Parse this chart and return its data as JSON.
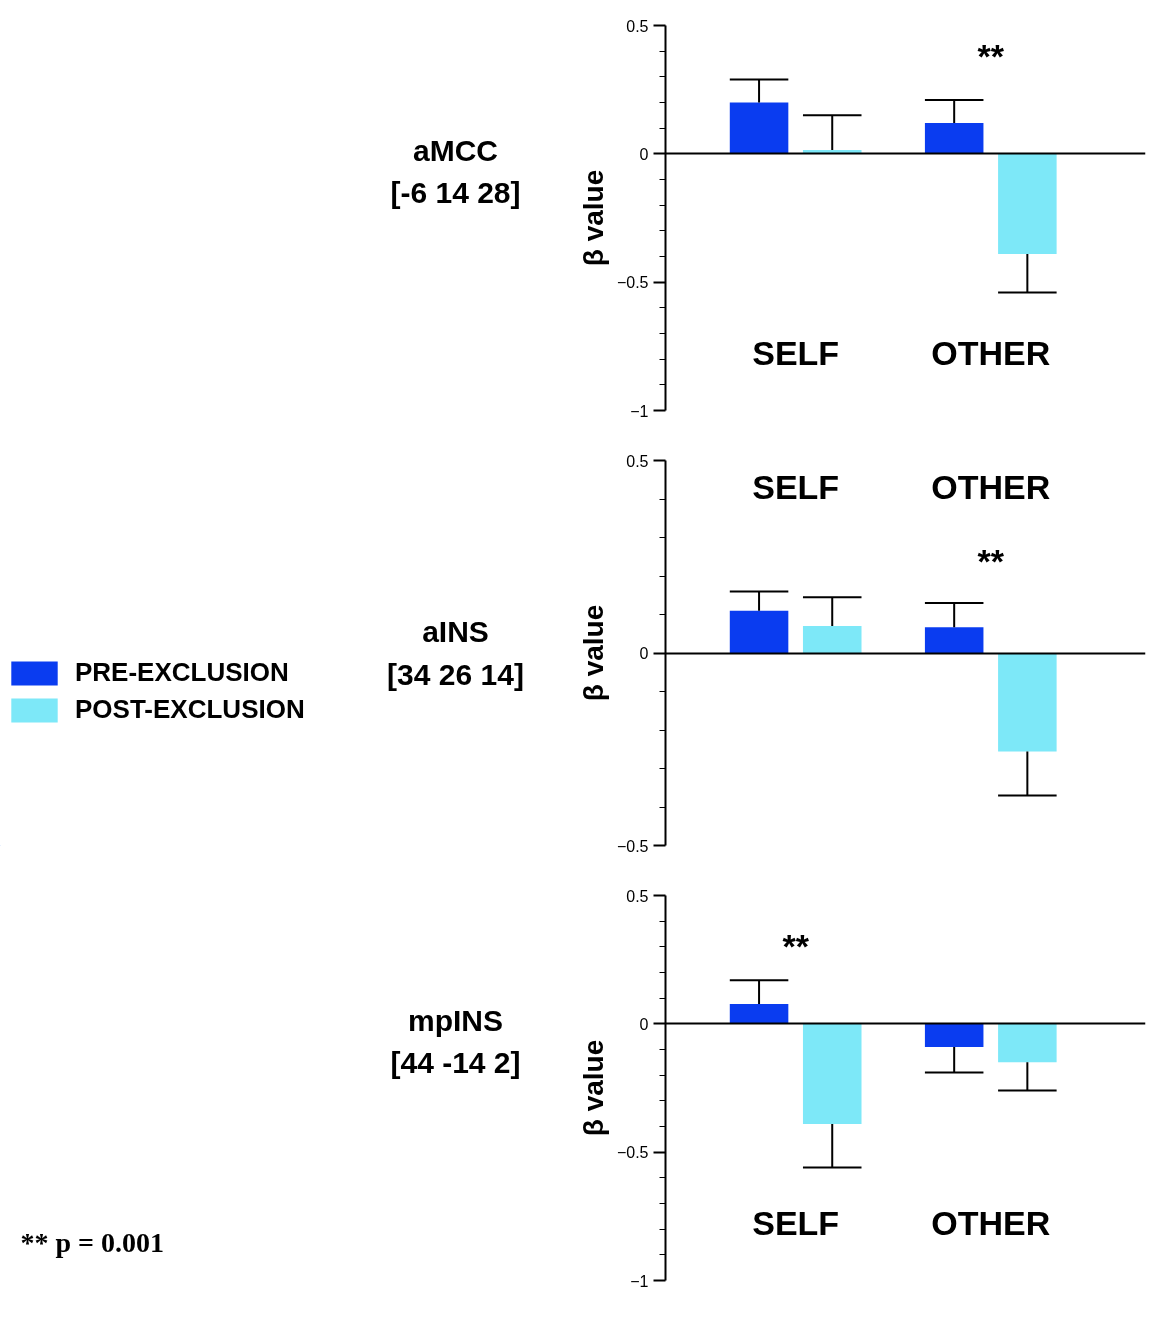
{
  "chart_data": [
    {
      "type": "bar",
      "title": "aMCC\n[-6 14 28]",
      "ylabel": "β value",
      "categories": [
        "SELF",
        "OTHER"
      ],
      "series": [
        {
          "color": "#0a3cf0",
          "values": [
            0.2,
            0.12
          ],
          "errors": [
            [
              0.2,
              0.29
            ],
            [
              0.12,
              0.21
            ]
          ]
        },
        {
          "color": "#7de8f8",
          "values": [
            0.015,
            -0.39
          ],
          "errors": [
            [
              0.015,
              0.15
            ],
            [
              -0.54,
              -0.39
            ]
          ]
        }
      ],
      "ylim": [
        -1,
        0.5
      ],
      "yticks": [
        0.5,
        0,
        -0.5,
        -1
      ],
      "annotations": [
        "**"
      ]
    },
    {
      "type": "bar",
      "title": "aINS\n[34 26 14]",
      "ylabel": "β value",
      "categories": [
        "SELF",
        "OTHER"
      ],
      "series": [
        {
          "name": "PRE-EXCLUSION",
          "color": "#0a3cf0",
          "values": [
            0.11,
            0.067
          ],
          "errors": [
            [
              0.11,
              0.16
            ],
            [
              0.067,
              0.13
            ]
          ]
        },
        {
          "name": "POST-EXCLUSION",
          "color": "#7de8f8",
          "values": [
            0.07,
            -0.256
          ],
          "errors": [
            [
              0.07,
              0.145
            ],
            [
              -0.37,
              -0.256
            ]
          ]
        }
      ],
      "ylim": [
        -0.5,
        0.5
      ],
      "yticks": [
        0.5,
        0,
        -0.5
      ],
      "legend": "left",
      "annotations": [
        "**"
      ]
    },
    {
      "type": "bar",
      "title": "mpINS\n[44 -14 2]",
      "ylabel": "β value",
      "categories": [
        "SELF",
        "OTHER"
      ],
      "series": [
        {
          "color": "#0a3cf0",
          "values": [
            0.077,
            -0.09
          ],
          "errors": [
            [
              0.077,
              0.17
            ],
            [
              -0.19,
              -0.09
            ]
          ]
        },
        {
          "color": "#7de8f8",
          "values": [
            -0.39,
            -0.15
          ],
          "errors": [
            [
              -0.56,
              -0.39
            ],
            [
              -0.26,
              -0.15
            ]
          ]
        }
      ],
      "ylim": [
        -1,
        0.5
      ],
      "yticks": [
        0.5,
        0,
        -0.5,
        -1
      ],
      "annotations": [
        "**",
        "** p = 0.001"
      ]
    }
  ]
}
